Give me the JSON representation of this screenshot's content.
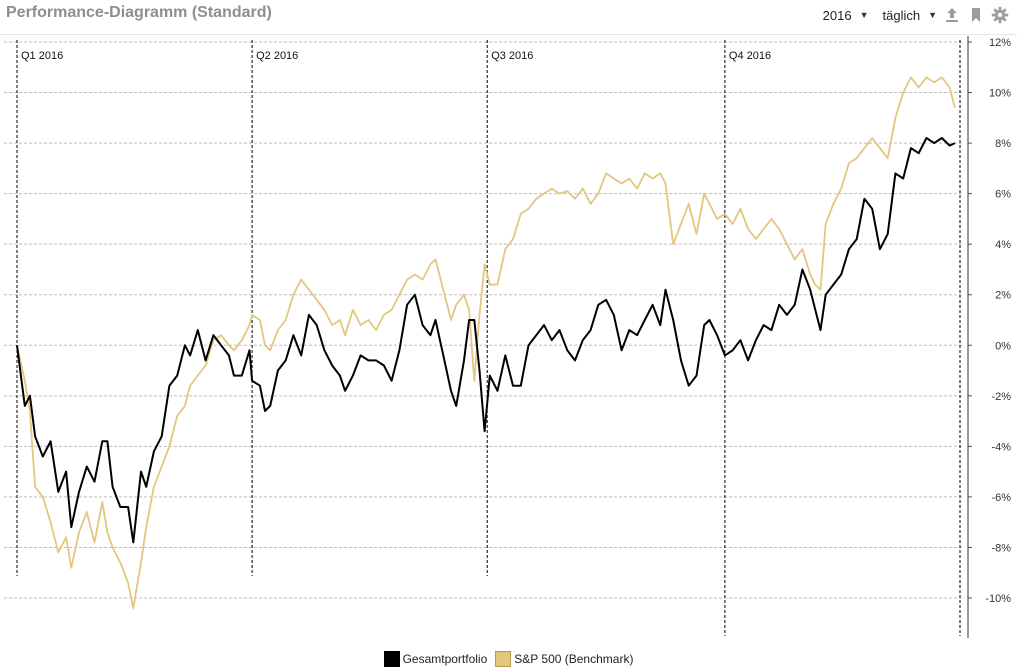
{
  "header": {
    "title": "Performance-Diagramm (Standard)",
    "year_select": "2016",
    "interval_select": "täglich",
    "icons": [
      "upload-icon",
      "bookmark-icon",
      "gear-icon"
    ]
  },
  "colors": {
    "portfolio": "#000000",
    "benchmark": "#e3c680",
    "grid": "#bdbdbd",
    "icon": "#9a9ea4"
  },
  "chart_data": {
    "type": "line",
    "title": "",
    "xlabel": "",
    "ylabel": "",
    "x_range": [
      "2016-01-01",
      "2016-12-31"
    ],
    "ylim": [
      -11.5,
      12
    ],
    "y_ticks": [
      12,
      10,
      8,
      6,
      4,
      2,
      0,
      -2,
      -4,
      -6,
      -8,
      -10
    ],
    "y_tick_labels": [
      "12%",
      "10%",
      "8%",
      "6%",
      "4%",
      "2%",
      "0%",
      "-2%",
      "-4%",
      "-6%",
      "-8%",
      "-10%"
    ],
    "grid": true,
    "legend_position": "bottom-center",
    "quarter_markers": [
      {
        "label": "Q1 2016",
        "date": "2016-01-01"
      },
      {
        "label": "Q2 2016",
        "date": "2016-04-01"
      },
      {
        "label": "Q3 2016",
        "date": "2016-07-01"
      },
      {
        "label": "Q4 2016",
        "date": "2016-10-01"
      }
    ],
    "series": [
      {
        "name": "Gesamtportfolio",
        "points": [
          [
            "2016-01-01",
            0.0
          ],
          [
            "2016-01-04",
            -2.4
          ],
          [
            "2016-01-06",
            -2.0
          ],
          [
            "2016-01-08",
            -3.6
          ],
          [
            "2016-01-11",
            -4.4
          ],
          [
            "2016-01-14",
            -3.8
          ],
          [
            "2016-01-17",
            -5.8
          ],
          [
            "2016-01-20",
            -5.0
          ],
          [
            "2016-01-22",
            -7.2
          ],
          [
            "2016-01-25",
            -5.8
          ],
          [
            "2016-01-28",
            -4.8
          ],
          [
            "2016-01-31",
            -5.4
          ],
          [
            "2016-02-03",
            -3.8
          ],
          [
            "2016-02-05",
            -3.8
          ],
          [
            "2016-02-07",
            -5.6
          ],
          [
            "2016-02-10",
            -6.4
          ],
          [
            "2016-02-13",
            -6.4
          ],
          [
            "2016-02-15",
            -7.8
          ],
          [
            "2016-02-18",
            -5.0
          ],
          [
            "2016-02-20",
            -5.6
          ],
          [
            "2016-02-23",
            -4.2
          ],
          [
            "2016-02-26",
            -3.6
          ],
          [
            "2016-02-29",
            -1.6
          ],
          [
            "2016-03-03",
            -1.2
          ],
          [
            "2016-03-06",
            0.0
          ],
          [
            "2016-03-08",
            -0.4
          ],
          [
            "2016-03-11",
            0.6
          ],
          [
            "2016-03-14",
            -0.6
          ],
          [
            "2016-03-17",
            0.4
          ],
          [
            "2016-03-20",
            0.0
          ],
          [
            "2016-03-23",
            -0.4
          ],
          [
            "2016-03-25",
            -1.2
          ],
          [
            "2016-03-28",
            -1.2
          ],
          [
            "2016-03-31",
            -0.2
          ],
          [
            "2016-04-01",
            -1.4
          ],
          [
            "2016-04-04",
            -1.6
          ],
          [
            "2016-04-06",
            -2.6
          ],
          [
            "2016-04-08",
            -2.4
          ],
          [
            "2016-04-11",
            -1.0
          ],
          [
            "2016-04-14",
            -0.6
          ],
          [
            "2016-04-17",
            0.4
          ],
          [
            "2016-04-20",
            -0.4
          ],
          [
            "2016-04-23",
            1.2
          ],
          [
            "2016-04-26",
            0.8
          ],
          [
            "2016-04-29",
            -0.2
          ],
          [
            "2016-05-02",
            -0.8
          ],
          [
            "2016-05-05",
            -1.2
          ],
          [
            "2016-05-07",
            -1.8
          ],
          [
            "2016-05-10",
            -1.2
          ],
          [
            "2016-05-13",
            -0.4
          ],
          [
            "2016-05-16",
            -0.6
          ],
          [
            "2016-05-19",
            -0.6
          ],
          [
            "2016-05-22",
            -0.8
          ],
          [
            "2016-05-25",
            -1.4
          ],
          [
            "2016-05-28",
            -0.2
          ],
          [
            "2016-05-31",
            1.6
          ],
          [
            "2016-06-03",
            2.0
          ],
          [
            "2016-06-06",
            0.8
          ],
          [
            "2016-06-09",
            0.4
          ],
          [
            "2016-06-11",
            1.0
          ],
          [
            "2016-06-14",
            -0.4
          ],
          [
            "2016-06-17",
            -1.8
          ],
          [
            "2016-06-19",
            -2.4
          ],
          [
            "2016-06-22",
            -0.6
          ],
          [
            "2016-06-24",
            1.0
          ],
          [
            "2016-06-26",
            1.0
          ],
          [
            "2016-06-28",
            -1.0
          ],
          [
            "2016-06-30",
            -3.4
          ],
          [
            "2016-07-02",
            -1.2
          ],
          [
            "2016-07-05",
            -1.8
          ],
          [
            "2016-07-08",
            -0.4
          ],
          [
            "2016-07-11",
            -1.6
          ],
          [
            "2016-07-14",
            -1.6
          ],
          [
            "2016-07-17",
            0.0
          ],
          [
            "2016-07-20",
            0.4
          ],
          [
            "2016-07-23",
            0.8
          ],
          [
            "2016-07-26",
            0.2
          ],
          [
            "2016-07-29",
            0.6
          ],
          [
            "2016-08-01",
            -0.2
          ],
          [
            "2016-08-04",
            -0.6
          ],
          [
            "2016-08-07",
            0.2
          ],
          [
            "2016-08-10",
            0.6
          ],
          [
            "2016-08-13",
            1.6
          ],
          [
            "2016-08-16",
            1.8
          ],
          [
            "2016-08-19",
            1.2
          ],
          [
            "2016-08-22",
            -0.2
          ],
          [
            "2016-08-25",
            0.6
          ],
          [
            "2016-08-28",
            0.4
          ],
          [
            "2016-08-31",
            1.0
          ],
          [
            "2016-09-03",
            1.6
          ],
          [
            "2016-09-06",
            0.8
          ],
          [
            "2016-09-08",
            2.2
          ],
          [
            "2016-09-11",
            1.0
          ],
          [
            "2016-09-14",
            -0.6
          ],
          [
            "2016-09-17",
            -1.6
          ],
          [
            "2016-09-20",
            -1.2
          ],
          [
            "2016-09-23",
            0.8
          ],
          [
            "2016-09-25",
            1.0
          ],
          [
            "2016-09-28",
            0.4
          ],
          [
            "2016-10-01",
            -0.4
          ],
          [
            "2016-10-04",
            -0.2
          ],
          [
            "2016-10-07",
            0.2
          ],
          [
            "2016-10-10",
            -0.6
          ],
          [
            "2016-10-13",
            0.2
          ],
          [
            "2016-10-16",
            0.8
          ],
          [
            "2016-10-19",
            0.6
          ],
          [
            "2016-10-22",
            1.6
          ],
          [
            "2016-10-25",
            1.2
          ],
          [
            "2016-10-28",
            1.6
          ],
          [
            "2016-10-31",
            3.0
          ],
          [
            "2016-11-03",
            2.2
          ],
          [
            "2016-11-05",
            1.4
          ],
          [
            "2016-11-07",
            0.6
          ],
          [
            "2016-11-09",
            2.0
          ],
          [
            "2016-11-12",
            2.4
          ],
          [
            "2016-11-15",
            2.8
          ],
          [
            "2016-11-18",
            3.8
          ],
          [
            "2016-11-21",
            4.2
          ],
          [
            "2016-11-24",
            5.8
          ],
          [
            "2016-11-27",
            5.4
          ],
          [
            "2016-11-30",
            3.8
          ],
          [
            "2016-12-03",
            4.4
          ],
          [
            "2016-12-06",
            6.8
          ],
          [
            "2016-12-09",
            6.6
          ],
          [
            "2016-12-12",
            7.8
          ],
          [
            "2016-12-15",
            7.6
          ],
          [
            "2016-12-18",
            8.2
          ],
          [
            "2016-12-21",
            8.0
          ],
          [
            "2016-12-24",
            8.2
          ],
          [
            "2016-12-27",
            7.9
          ],
          [
            "2016-12-29",
            8.0
          ]
        ]
      },
      {
        "name": "S&P 500 (Benchmark)",
        "points": [
          [
            "2016-01-01",
            0.0
          ],
          [
            "2016-01-04",
            -1.4
          ],
          [
            "2016-01-06",
            -2.6
          ],
          [
            "2016-01-08",
            -5.6
          ],
          [
            "2016-01-11",
            -6.0
          ],
          [
            "2016-01-14",
            -7.0
          ],
          [
            "2016-01-17",
            -8.2
          ],
          [
            "2016-01-20",
            -7.6
          ],
          [
            "2016-01-22",
            -8.8
          ],
          [
            "2016-01-25",
            -7.4
          ],
          [
            "2016-01-28",
            -6.6
          ],
          [
            "2016-01-31",
            -7.8
          ],
          [
            "2016-02-03",
            -6.2
          ],
          [
            "2016-02-05",
            -7.4
          ],
          [
            "2016-02-07",
            -8.0
          ],
          [
            "2016-02-10",
            -8.6
          ],
          [
            "2016-02-13",
            -9.4
          ],
          [
            "2016-02-15",
            -10.4
          ],
          [
            "2016-02-18",
            -8.6
          ],
          [
            "2016-02-20",
            -7.2
          ],
          [
            "2016-02-23",
            -5.6
          ],
          [
            "2016-02-26",
            -4.8
          ],
          [
            "2016-02-29",
            -4.0
          ],
          [
            "2016-03-03",
            -2.8
          ],
          [
            "2016-03-06",
            -2.4
          ],
          [
            "2016-03-08",
            -1.6
          ],
          [
            "2016-03-11",
            -1.2
          ],
          [
            "2016-03-14",
            -0.8
          ],
          [
            "2016-03-17",
            0.2
          ],
          [
            "2016-03-20",
            0.4
          ],
          [
            "2016-03-23",
            0.0
          ],
          [
            "2016-03-25",
            -0.2
          ],
          [
            "2016-03-28",
            0.2
          ],
          [
            "2016-03-31",
            0.8
          ],
          [
            "2016-04-01",
            1.2
          ],
          [
            "2016-04-04",
            1.0
          ],
          [
            "2016-04-06",
            0.0
          ],
          [
            "2016-04-08",
            -0.2
          ],
          [
            "2016-04-11",
            0.6
          ],
          [
            "2016-04-14",
            1.0
          ],
          [
            "2016-04-17",
            2.0
          ],
          [
            "2016-04-20",
            2.6
          ],
          [
            "2016-04-23",
            2.2
          ],
          [
            "2016-04-26",
            1.8
          ],
          [
            "2016-04-29",
            1.4
          ],
          [
            "2016-05-02",
            0.8
          ],
          [
            "2016-05-05",
            1.0
          ],
          [
            "2016-05-07",
            0.4
          ],
          [
            "2016-05-10",
            1.4
          ],
          [
            "2016-05-13",
            0.8
          ],
          [
            "2016-05-16",
            1.0
          ],
          [
            "2016-05-19",
            0.6
          ],
          [
            "2016-05-22",
            1.2
          ],
          [
            "2016-05-25",
            1.4
          ],
          [
            "2016-05-28",
            2.0
          ],
          [
            "2016-05-31",
            2.6
          ],
          [
            "2016-06-03",
            2.8
          ],
          [
            "2016-06-06",
            2.6
          ],
          [
            "2016-06-09",
            3.2
          ],
          [
            "2016-06-11",
            3.4
          ],
          [
            "2016-06-14",
            2.2
          ],
          [
            "2016-06-17",
            1.0
          ],
          [
            "2016-06-19",
            1.6
          ],
          [
            "2016-06-22",
            2.0
          ],
          [
            "2016-06-24",
            1.4
          ],
          [
            "2016-06-26",
            -1.4
          ],
          [
            "2016-06-28",
            1.2
          ],
          [
            "2016-06-30",
            3.2
          ],
          [
            "2016-07-02",
            2.4
          ],
          [
            "2016-07-05",
            2.4
          ],
          [
            "2016-07-08",
            3.8
          ],
          [
            "2016-07-11",
            4.2
          ],
          [
            "2016-07-14",
            5.2
          ],
          [
            "2016-07-17",
            5.4
          ],
          [
            "2016-07-20",
            5.8
          ],
          [
            "2016-07-23",
            6.0
          ],
          [
            "2016-07-26",
            6.2
          ],
          [
            "2016-07-29",
            6.0
          ],
          [
            "2016-08-01",
            6.1
          ],
          [
            "2016-08-04",
            5.8
          ],
          [
            "2016-08-07",
            6.2
          ],
          [
            "2016-08-10",
            5.6
          ],
          [
            "2016-08-13",
            6.0
          ],
          [
            "2016-08-16",
            6.8
          ],
          [
            "2016-08-19",
            6.6
          ],
          [
            "2016-08-22",
            6.4
          ],
          [
            "2016-08-25",
            6.6
          ],
          [
            "2016-08-28",
            6.2
          ],
          [
            "2016-08-31",
            6.8
          ],
          [
            "2016-09-03",
            6.6
          ],
          [
            "2016-09-06",
            6.8
          ],
          [
            "2016-09-08",
            6.4
          ],
          [
            "2016-09-11",
            4.0
          ],
          [
            "2016-09-14",
            4.8
          ],
          [
            "2016-09-17",
            5.6
          ],
          [
            "2016-09-20",
            4.4
          ],
          [
            "2016-09-23",
            6.0
          ],
          [
            "2016-09-25",
            5.6
          ],
          [
            "2016-09-28",
            5.0
          ],
          [
            "2016-10-01",
            5.2
          ],
          [
            "2016-10-04",
            4.8
          ],
          [
            "2016-10-07",
            5.4
          ],
          [
            "2016-10-10",
            4.6
          ],
          [
            "2016-10-13",
            4.2
          ],
          [
            "2016-10-16",
            4.6
          ],
          [
            "2016-10-19",
            5.0
          ],
          [
            "2016-10-22",
            4.6
          ],
          [
            "2016-10-25",
            4.0
          ],
          [
            "2016-10-28",
            3.4
          ],
          [
            "2016-10-31",
            3.8
          ],
          [
            "2016-11-03",
            2.8
          ],
          [
            "2016-11-05",
            2.4
          ],
          [
            "2016-11-07",
            2.2
          ],
          [
            "2016-11-09",
            4.8
          ],
          [
            "2016-11-12",
            5.6
          ],
          [
            "2016-11-15",
            6.2
          ],
          [
            "2016-11-18",
            7.2
          ],
          [
            "2016-11-21",
            7.4
          ],
          [
            "2016-11-24",
            7.8
          ],
          [
            "2016-11-27",
            8.2
          ],
          [
            "2016-11-30",
            7.8
          ],
          [
            "2016-12-03",
            7.4
          ],
          [
            "2016-12-06",
            9.0
          ],
          [
            "2016-12-09",
            10.0
          ],
          [
            "2016-12-12",
            10.6
          ],
          [
            "2016-12-15",
            10.2
          ],
          [
            "2016-12-18",
            10.6
          ],
          [
            "2016-12-21",
            10.4
          ],
          [
            "2016-12-24",
            10.6
          ],
          [
            "2016-12-27",
            10.2
          ],
          [
            "2016-12-29",
            9.4
          ]
        ]
      }
    ]
  }
}
